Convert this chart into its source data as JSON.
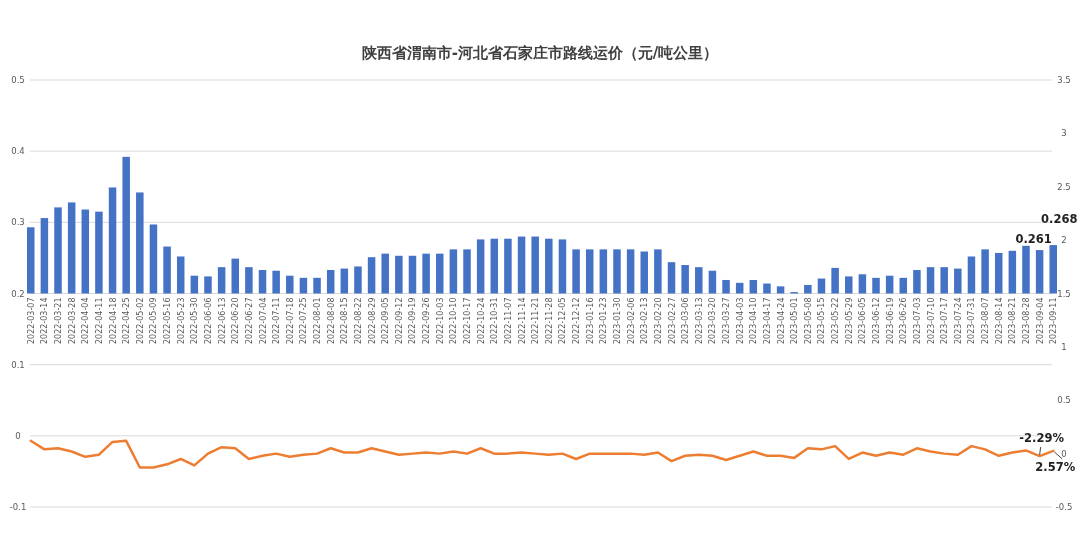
{
  "chart_data": {
    "type": "bar",
    "title": "陕西省渭南市-河北省石家庄市路线运价（元/吨公里）",
    "categories": [
      "2022-03-07",
      "2022-03-14",
      "2022-03-21",
      "2022-03-28",
      "2022-04-04",
      "2022-04-11",
      "2022-04-18",
      "2022-04-25",
      "2022-05-02",
      "2022-05-09",
      "2022-05-16",
      "2022-05-23",
      "2022-05-30",
      "2022-06-06",
      "2022-06-13",
      "2022-06-20",
      "2022-06-27",
      "2022-07-04",
      "2022-07-11",
      "2022-07-18",
      "2022-07-25",
      "2022-08-01",
      "2022-08-08",
      "2022-08-15",
      "2022-08-22",
      "2022-08-29",
      "2022-09-05",
      "2022-09-12",
      "2022-09-19",
      "2022-09-26",
      "2022-10-03",
      "2022-10-10",
      "2022-10-17",
      "2022-10-24",
      "2022-10-31",
      "2022-11-07",
      "2022-11-14",
      "2022-11-21",
      "2022-11-28",
      "2022-12-05",
      "2022-12-12",
      "2023-01-16",
      "2023-01-23",
      "2023-01-30",
      "2023-02-06",
      "2023-02-13",
      "2023-02-20",
      "2023-02-27",
      "2023-03-06",
      "2023-03-13",
      "2023-03-20",
      "2023-03-27",
      "2023-04-03",
      "2023-04-10",
      "2023-04-17",
      "2023-04-24",
      "2023-05-01",
      "2023-05-08",
      "2023-05-15",
      "2023-05-22",
      "2023-05-29",
      "2023-06-05",
      "2023-06-12",
      "2023-06-19",
      "2023-06-26",
      "2023-07-03",
      "2023-07-10",
      "2023-07-17",
      "2023-07-24",
      "2023-07-31",
      "2023-08-07",
      "2023-08-14",
      "2023-08-21",
      "2023-08-28",
      "2023-09-04",
      "2023-09-11"
    ],
    "series": [
      {
        "color": "#4472c4",
        "base": [
          0.2,
          0.2,
          0.2,
          0.2,
          0.2,
          0.2,
          0.2,
          0.2,
          0.2,
          0.2,
          0.2,
          0.2,
          0.2,
          0.2,
          0.2,
          0.2,
          0.2,
          0.2,
          0.2,
          0.2,
          0.2,
          0.2,
          0.2,
          0.2,
          0.2,
          0.2,
          0.2,
          0.2,
          0.2,
          0.2,
          0.2,
          0.2,
          0.2,
          0.2,
          0.2,
          0.2,
          0.2,
          0.2,
          0.2,
          0.2,
          0.2,
          0.2,
          0.2,
          0.2,
          0.2,
          0.2,
          0.2,
          0.2,
          0.2,
          0.2,
          0.2,
          0.2,
          0.2,
          0.2,
          0.2,
          0.2,
          0.2,
          0.2,
          0.2,
          0.2,
          0.2,
          0.2,
          0.2,
          0.2,
          0.2,
          0.2,
          0.2,
          0.2,
          0.2,
          0.2,
          0.2,
          0.2,
          0.2,
          0.2,
          0.2,
          0.2
        ],
        "values": [
          0.093,
          0.106,
          0.121,
          0.128,
          0.118,
          0.115,
          0.149,
          0.192,
          0.142,
          0.097,
          0.066,
          0.052,
          0.025,
          0.024,
          0.037,
          0.049,
          0.037,
          0.033,
          0.032,
          0.025,
          0.022,
          0.022,
          0.033,
          0.035,
          0.038,
          0.051,
          0.056,
          0.053,
          0.053,
          0.056,
          0.056,
          0.062,
          0.062,
          0.076,
          0.077,
          0.077,
          0.08,
          0.08,
          0.077,
          0.076,
          0.062,
          0.062,
          0.062,
          0.062,
          0.062,
          0.059,
          0.062,
          0.044,
          0.04,
          0.037,
          0.032,
          0.019,
          0.015,
          0.019,
          0.014,
          0.01,
          0.002,
          0.012,
          0.021,
          0.036,
          0.024,
          0.027,
          0.022,
          0.025,
          0.022,
          0.033,
          0.037,
          0.037,
          0.035,
          0.052,
          0.062,
          0.057,
          0.06,
          0.067,
          0.061,
          0.068
        ],
        "value_labels": [
          null,
          null,
          null,
          null,
          null,
          null,
          null,
          null,
          null,
          null,
          null,
          null,
          null,
          null,
          null,
          null,
          null,
          null,
          null,
          null,
          null,
          null,
          null,
          null,
          null,
          null,
          null,
          null,
          null,
          null,
          null,
          null,
          null,
          null,
          null,
          null,
          null,
          null,
          null,
          null,
          null,
          null,
          null,
          null,
          null,
          null,
          null,
          null,
          null,
          null,
          null,
          null,
          null,
          null,
          null,
          null,
          null,
          null,
          null,
          null,
          null,
          null,
          null,
          null,
          null,
          null,
          null,
          null,
          null,
          null,
          null,
          null,
          null,
          null,
          "0.261",
          "0.268"
        ]
      },
      {
        "type": "line",
        "axis": "y2",
        "color": "#ed7d31",
        "values": [
          0.12,
          0.04,
          0.05,
          0.02,
          -0.03,
          -0.01,
          0.11,
          0.12,
          -0.13,
          -0.13,
          -0.1,
          -0.05,
          -0.11,
          0,
          0.06,
          0.05,
          -0.05,
          -0.02,
          0,
          -0.03,
          -0.01,
          0,
          0.05,
          0.01,
          0.01,
          0.05,
          0.02,
          -0.01,
          0,
          0.01,
          0,
          0.02,
          0,
          0.05,
          0,
          0,
          0.01,
          0,
          -0.01,
          0,
          -0.05,
          0,
          0,
          0,
          0,
          -0.01,
          0.01,
          -0.07,
          -0.02,
          -0.01,
          -0.02,
          -0.06,
          -0.02,
          0.02,
          -0.02,
          -0.02,
          -0.04,
          0.05,
          0.04,
          0.07,
          -0.05,
          0.01,
          -0.02,
          0.01,
          -0.01,
          0.05,
          0.02,
          0,
          -0.01,
          0.07,
          0.04,
          -0.02,
          0.01,
          0.03,
          -0.0229,
          0.0257
        ],
        "value_labels": [
          null,
          null,
          null,
          null,
          null,
          null,
          null,
          null,
          null,
          null,
          null,
          null,
          null,
          null,
          null,
          null,
          null,
          null,
          null,
          null,
          null,
          null,
          null,
          null,
          null,
          null,
          null,
          null,
          null,
          null,
          null,
          null,
          null,
          null,
          null,
          null,
          null,
          null,
          null,
          null,
          null,
          null,
          null,
          null,
          null,
          null,
          null,
          null,
          null,
          null,
          null,
          null,
          null,
          null,
          null,
          null,
          null,
          null,
          null,
          null,
          null,
          null,
          null,
          null,
          null,
          null,
          null,
          null,
          null,
          null,
          null,
          null,
          null,
          null,
          "-2.29%",
          "2.57%"
        ]
      }
    ],
    "ylim": [
      -0.1,
      0.5
    ],
    "yticks": [
      0.5,
      0.4,
      0.3,
      0.2,
      0.1,
      0,
      -0.1
    ],
    "y2lim": [
      -0.5,
      3.5
    ],
    "y2ticks": [
      -0.5,
      0,
      0.5,
      1,
      1.5,
      2,
      2.5,
      3,
      3.5
    ],
    "grid": "y"
  }
}
